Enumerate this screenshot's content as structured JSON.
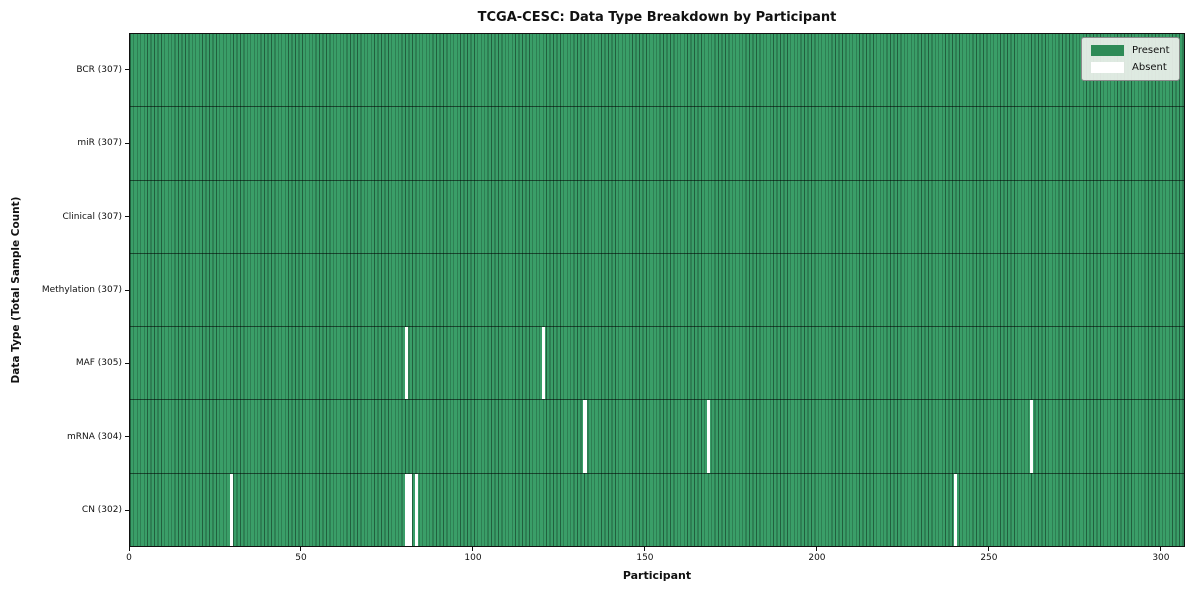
{
  "chart_data": {
    "type": "heatmap",
    "title": "TCGA-CESC: Data Type Breakdown by Participant",
    "xlabel": "Participant",
    "ylabel": "Data Type (Total Sample Count)",
    "x_ticks": [
      0,
      50,
      100,
      150,
      200,
      250,
      300
    ],
    "xlim": [
      0,
      307
    ],
    "n_participants": 307,
    "grid": false,
    "legend_position": "upper right",
    "colors": {
      "present": "#2e8b57",
      "present_cell": "#3a9e68",
      "absent": "#ffffff",
      "cell_edge": "rgba(0,0,0,0.5)"
    },
    "legend": [
      {
        "label": "Present",
        "color": "#2e8b57"
      },
      {
        "label": "Absent",
        "color": "#ffffff"
      }
    ],
    "rows": [
      {
        "name": "BCR",
        "label": "BCR (307)",
        "present_count": 307,
        "absent_participants": []
      },
      {
        "name": "miR",
        "label": "miR (307)",
        "present_count": 307,
        "absent_participants": []
      },
      {
        "name": "Clinical",
        "label": "Clinical (307)",
        "present_count": 307,
        "absent_participants": []
      },
      {
        "name": "Methylation",
        "label": "Methylation (307)",
        "present_count": 307,
        "absent_participants": []
      },
      {
        "name": "MAF",
        "label": "MAF (305)",
        "present_count": 305,
        "absent_participants": [
          80,
          120
        ]
      },
      {
        "name": "mRNA",
        "label": "mRNA (304)",
        "present_count": 304,
        "absent_participants": [
          132,
          168,
          262
        ]
      },
      {
        "name": "CN",
        "label": "CN (302)",
        "present_count": 302,
        "absent_participants": [
          29,
          80,
          81,
          83,
          240
        ]
      }
    ]
  }
}
